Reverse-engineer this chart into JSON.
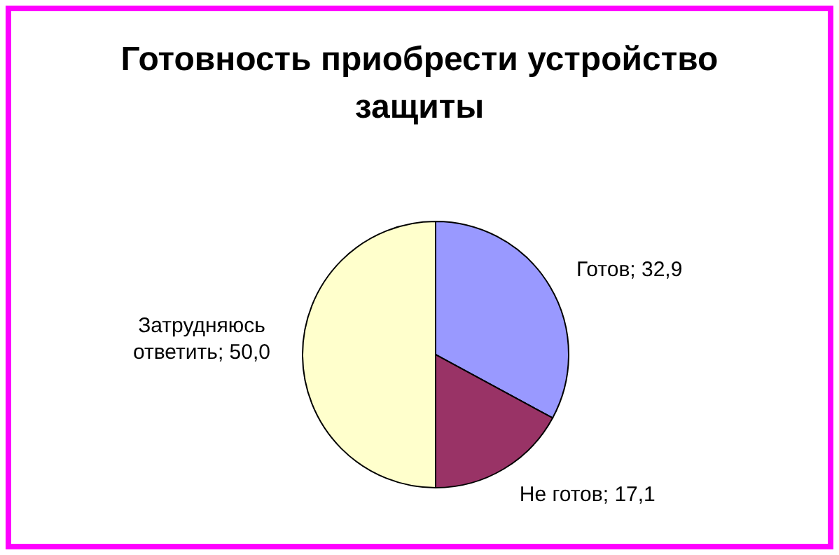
{
  "chart_data": {
    "type": "pie",
    "title": "Готовность приобрести устройство защиты",
    "categories": [
      "Готов",
      "Не готов",
      "Затрудняюсь ответить"
    ],
    "values": [
      32.9,
      17.1,
      50.0
    ],
    "value_labels": [
      "32,9",
      "17,1",
      "50,0"
    ],
    "colors": [
      "#9999ff",
      "#993366",
      "#ffffcc"
    ],
    "data_labels": true,
    "legend": false
  }
}
